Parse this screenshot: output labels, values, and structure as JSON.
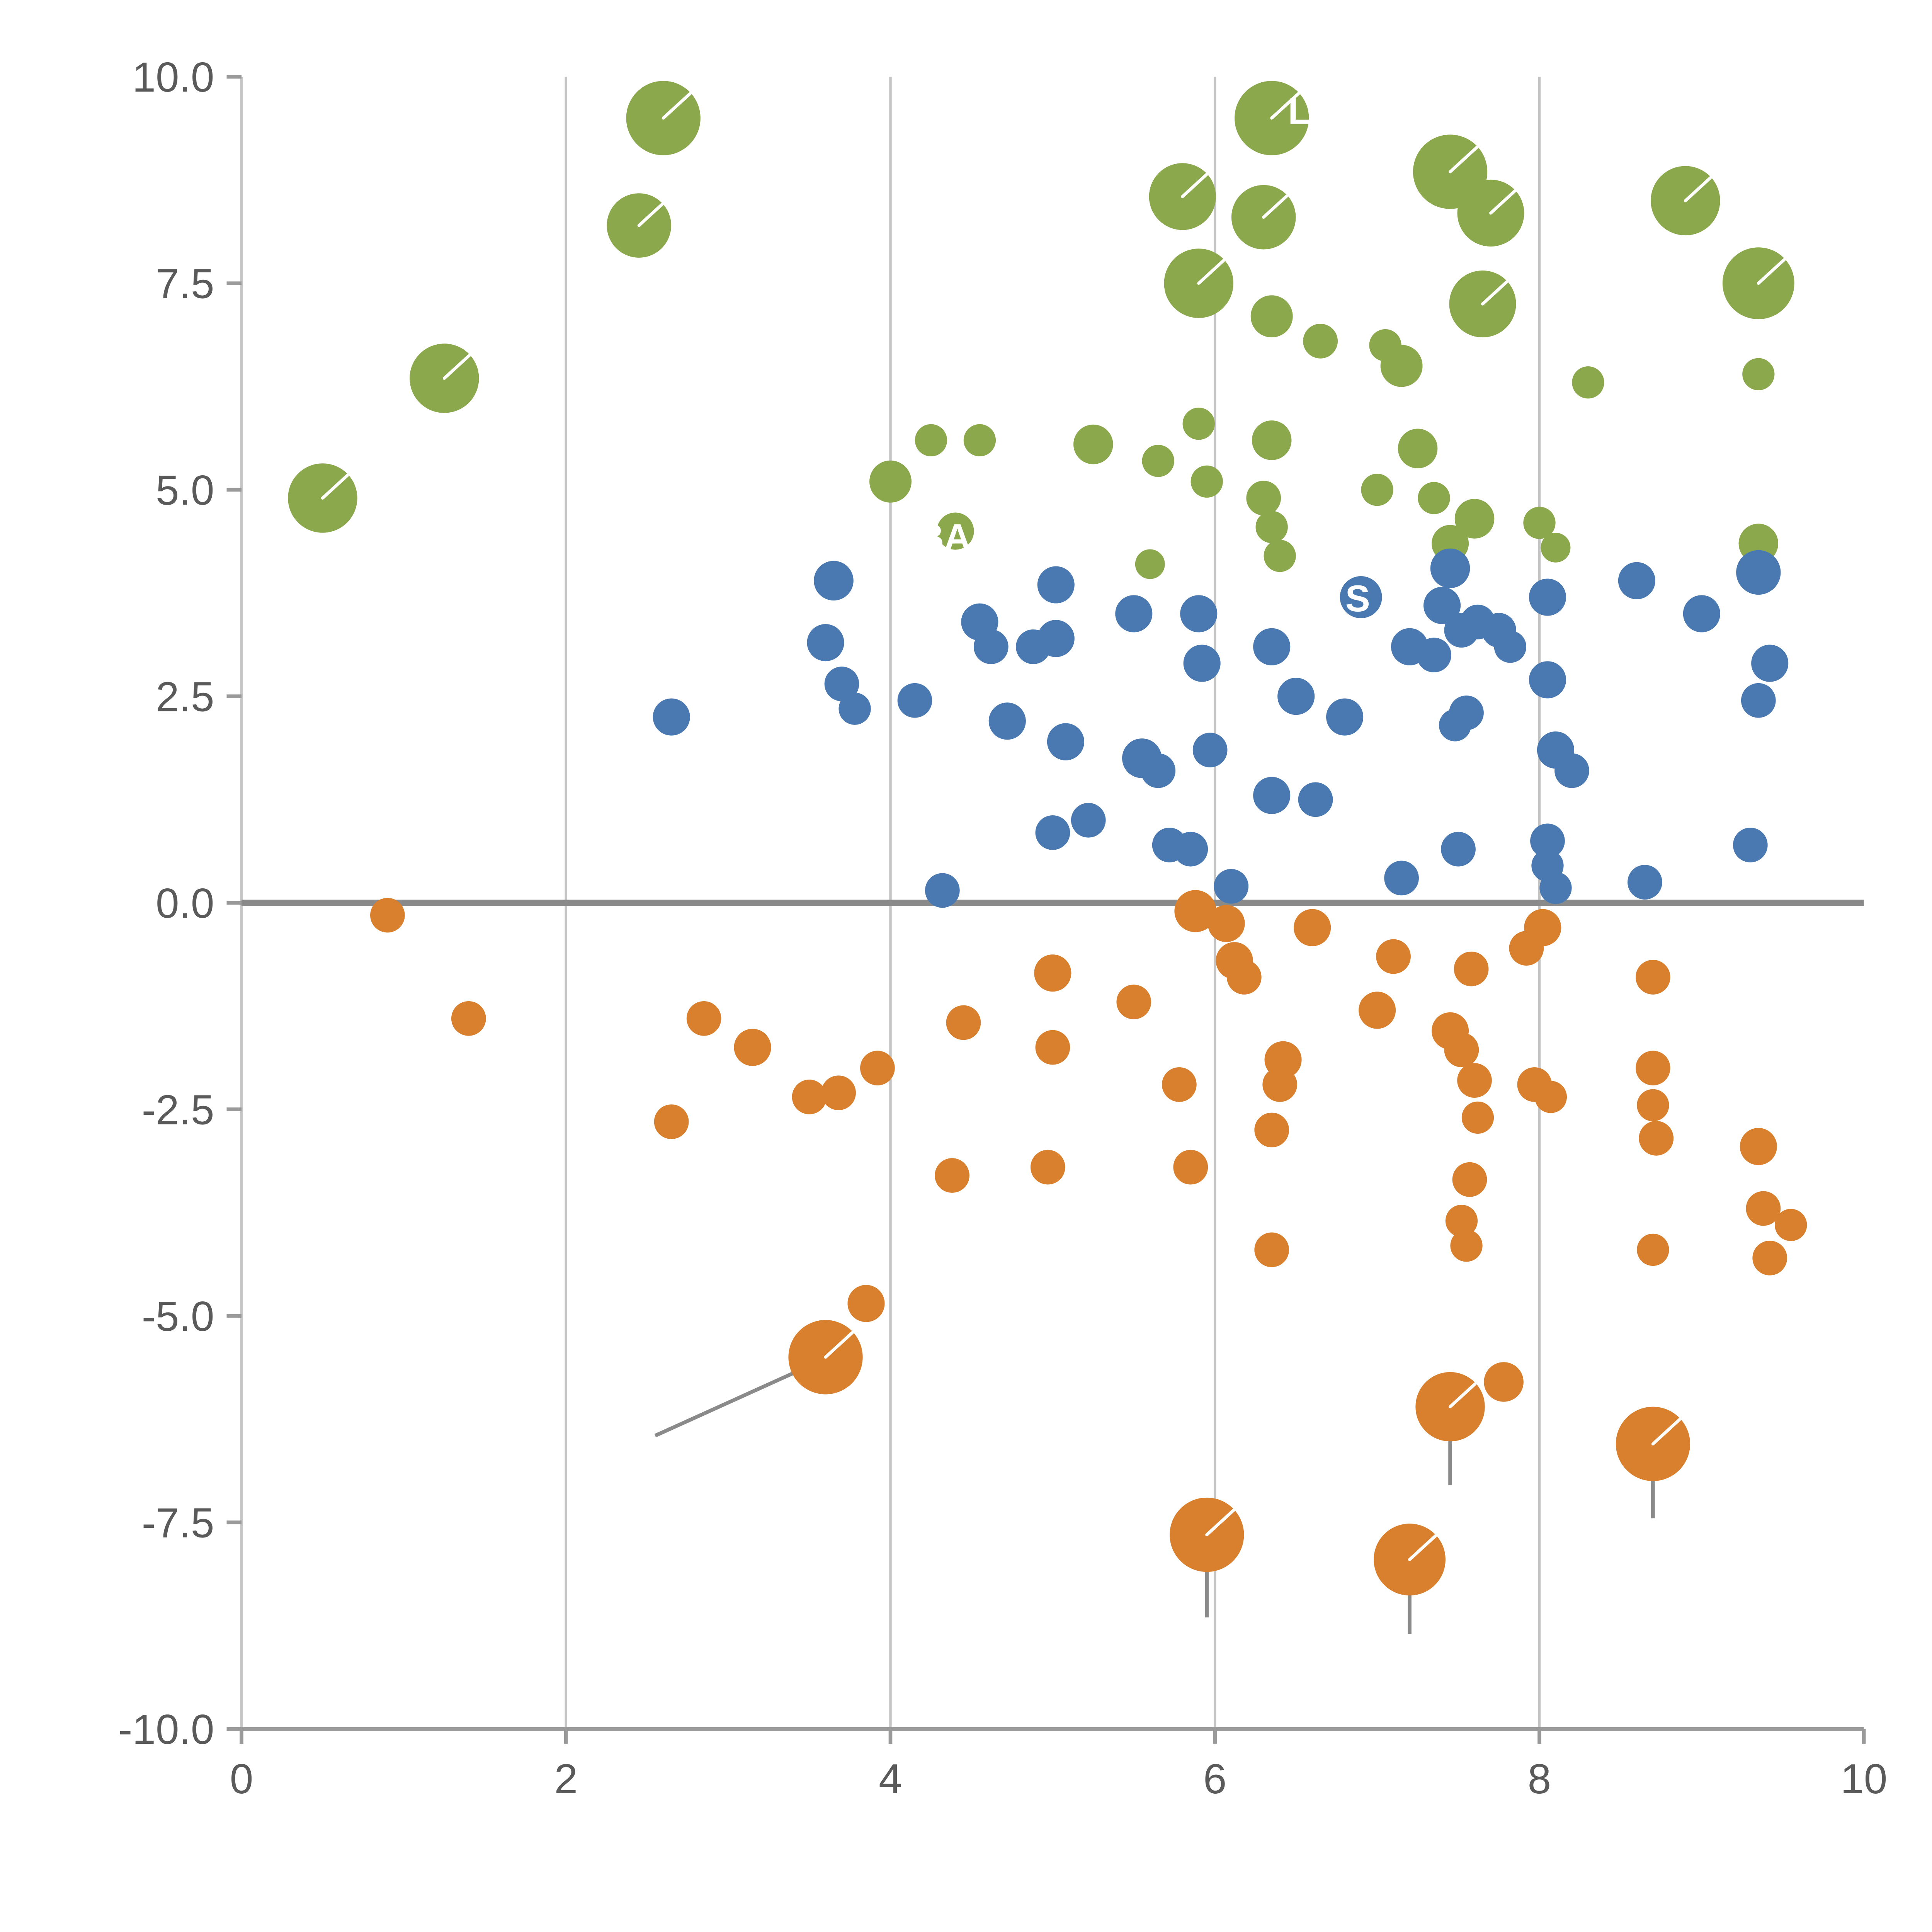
{
  "page": {
    "background": "#ffffff"
  },
  "chart_data": {
    "type": "scatter",
    "title": "",
    "xlabel": "",
    "ylabel": "",
    "xlim": [
      0,
      10
    ],
    "ylim": [
      -10,
      10
    ],
    "x_ticks": [
      0,
      2,
      4,
      6,
      8,
      10
    ],
    "x_tick_labels": [
      "0",
      "2",
      "4",
      "6",
      "8",
      "10"
    ],
    "y_ticks": [
      10,
      7.5,
      5,
      2.5,
      0,
      -2.5,
      -5,
      -7.5,
      -10
    ],
    "y_tick_labels": [
      "10.0",
      "7.5",
      "5.0",
      "2.5",
      "0.0",
      "-2.5",
      "-5.0",
      "-7.5",
      "-10.0"
    ],
    "gridlines_x": [
      2,
      4,
      6,
      8
    ],
    "grid_color": "#c4c4c4",
    "axis_color": "#9a9a9a",
    "zero_line": {
      "y": 0,
      "color": "#8a8a8a",
      "width": 5
    },
    "legend": "none",
    "series": [
      {
        "name": "green",
        "color": "#8CA84D",
        "points": [
          [
            2.6,
            9.5,
            30
          ],
          [
            2.45,
            8.2,
            26
          ],
          [
            1.25,
            6.35,
            28
          ],
          [
            0.5,
            4.9,
            28
          ],
          [
            5.8,
            8.55,
            27
          ],
          [
            6.35,
            9.5,
            30
          ],
          [
            6.3,
            8.3,
            26
          ],
          [
            5.9,
            7.5,
            28
          ],
          [
            6.35,
            7.1,
            17
          ],
          [
            6.65,
            6.8,
            14
          ],
          [
            7.05,
            6.75,
            13
          ],
          [
            7.45,
            8.85,
            30
          ],
          [
            7.7,
            8.35,
            27
          ],
          [
            7.65,
            7.25,
            27
          ],
          [
            7.15,
            6.5,
            17
          ],
          [
            7.25,
            5.5,
            16
          ],
          [
            8.9,
            8.5,
            28
          ],
          [
            9.35,
            7.5,
            29
          ],
          [
            8.3,
            6.3,
            13
          ],
          [
            9.35,
            6.4,
            13
          ],
          [
            4.0,
            5.1,
            17
          ],
          [
            4.25,
            5.6,
            13
          ],
          [
            4.55,
            5.6,
            13
          ],
          [
            4.4,
            4.5,
            15
          ],
          [
            5.25,
            5.55,
            16
          ],
          [
            5.65,
            5.35,
            13
          ],
          [
            5.9,
            5.8,
            13
          ],
          [
            6.35,
            5.6,
            16
          ],
          [
            5.95,
            5.1,
            13
          ],
          [
            6.3,
            4.9,
            14
          ],
          [
            6.35,
            4.55,
            13
          ],
          [
            6.4,
            4.2,
            13
          ],
          [
            7.0,
            5.0,
            13
          ],
          [
            7.35,
            4.9,
            13
          ],
          [
            7.6,
            4.65,
            16
          ],
          [
            7.45,
            4.35,
            15
          ],
          [
            8.0,
            4.6,
            13
          ],
          [
            8.1,
            4.3,
            12
          ],
          [
            9.35,
            4.35,
            16
          ],
          [
            5.6,
            4.1,
            12
          ]
        ]
      },
      {
        "name": "blue",
        "color": "#4A79B2",
        "points": [
          [
            3.65,
            3.9,
            16
          ],
          [
            3.6,
            3.15,
            15
          ],
          [
            3.7,
            2.65,
            14
          ],
          [
            3.78,
            2.35,
            13
          ],
          [
            2.65,
            2.25,
            15
          ],
          [
            4.15,
            2.45,
            14
          ],
          [
            4.55,
            3.4,
            15
          ],
          [
            4.62,
            3.1,
            14
          ],
          [
            4.72,
            2.2,
            15
          ],
          [
            4.88,
            3.1,
            14
          ],
          [
            5.02,
            3.2,
            15
          ],
          [
            5.02,
            3.85,
            15
          ],
          [
            5.08,
            1.95,
            15
          ],
          [
            5.0,
            0.85,
            14
          ],
          [
            5.22,
            1.0,
            14
          ],
          [
            5.5,
            3.5,
            15
          ],
          [
            5.55,
            1.75,
            16
          ],
          [
            5.65,
            1.6,
            14
          ],
          [
            5.72,
            0.7,
            14
          ],
          [
            5.85,
            0.65,
            14
          ],
          [
            5.9,
            3.5,
            15
          ],
          [
            5.92,
            2.9,
            15
          ],
          [
            5.97,
            1.85,
            14
          ],
          [
            6.1,
            0.2,
            14
          ],
          [
            6.35,
            3.1,
            15
          ],
          [
            6.35,
            1.3,
            15
          ],
          [
            6.5,
            2.5,
            15
          ],
          [
            6.62,
            1.25,
            14
          ],
          [
            6.8,
            2.25,
            15
          ],
          [
            6.9,
            3.7,
            17
          ],
          [
            7.2,
            3.1,
            15
          ],
          [
            7.35,
            3.0,
            14
          ],
          [
            7.4,
            3.6,
            15
          ],
          [
            7.45,
            4.05,
            16
          ],
          [
            7.52,
            3.3,
            14
          ],
          [
            7.55,
            2.3,
            14
          ],
          [
            7.48,
            2.15,
            13
          ],
          [
            7.62,
            3.4,
            14
          ],
          [
            7.75,
            3.3,
            14
          ],
          [
            7.82,
            3.1,
            13
          ],
          [
            7.15,
            0.3,
            14
          ],
          [
            7.5,
            0.65,
            14
          ],
          [
            8.05,
            3.7,
            15
          ],
          [
            8.05,
            2.7,
            15
          ],
          [
            8.1,
            1.85,
            15
          ],
          [
            8.2,
            1.6,
            14
          ],
          [
            8.05,
            0.75,
            14
          ],
          [
            8.05,
            0.45,
            13
          ],
          [
            8.1,
            0.18,
            13
          ],
          [
            8.6,
            3.9,
            15
          ],
          [
            9.0,
            3.5,
            15
          ],
          [
            9.35,
            4.0,
            18
          ],
          [
            9.42,
            2.9,
            15
          ],
          [
            9.35,
            2.45,
            14
          ],
          [
            9.3,
            0.7,
            14
          ],
          [
            8.65,
            0.25,
            14
          ],
          [
            4.32,
            0.15,
            14
          ]
        ]
      },
      {
        "name": "orange",
        "color": "#D9802E",
        "points": [
          [
            0.9,
            -0.15,
            14
          ],
          [
            1.4,
            -1.4,
            14
          ],
          [
            2.85,
            -1.4,
            14
          ],
          [
            3.15,
            -1.75,
            15
          ],
          [
            2.65,
            -2.65,
            14
          ],
          [
            3.5,
            -2.35,
            14
          ],
          [
            3.68,
            -2.3,
            14
          ],
          [
            3.92,
            -2.0,
            14
          ],
          [
            4.45,
            -1.45,
            14
          ],
          [
            5.0,
            -0.85,
            15
          ],
          [
            5.0,
            -1.75,
            14
          ],
          [
            5.5,
            -1.2,
            14
          ],
          [
            4.38,
            -3.3,
            14
          ],
          [
            4.97,
            -3.2,
            14
          ],
          [
            5.78,
            -2.2,
            14
          ],
          [
            5.85,
            -3.2,
            14
          ],
          [
            5.88,
            -0.1,
            17
          ],
          [
            6.07,
            -0.25,
            15
          ],
          [
            6.12,
            -0.7,
            15
          ],
          [
            6.18,
            -0.9,
            14
          ],
          [
            6.42,
            -1.9,
            15
          ],
          [
            6.4,
            -2.2,
            14
          ],
          [
            6.35,
            -2.75,
            14
          ],
          [
            6.6,
            -0.3,
            15
          ],
          [
            6.35,
            -4.2,
            14
          ],
          [
            7.0,
            -1.3,
            15
          ],
          [
            7.1,
            -0.65,
            14
          ],
          [
            7.45,
            -1.55,
            15
          ],
          [
            7.52,
            -1.78,
            14
          ],
          [
            7.58,
            -0.8,
            14
          ],
          [
            7.6,
            -2.15,
            14
          ],
          [
            7.62,
            -2.6,
            13
          ],
          [
            7.57,
            -3.35,
            14
          ],
          [
            7.52,
            -3.85,
            13
          ],
          [
            7.55,
            -4.15,
            13
          ],
          [
            7.92,
            -0.55,
            14
          ],
          [
            8.02,
            -0.3,
            15
          ],
          [
            7.97,
            -2.2,
            14
          ],
          [
            8.07,
            -2.35,
            13
          ],
          [
            8.7,
            -0.9,
            14
          ],
          [
            8.7,
            -2.0,
            14
          ],
          [
            8.7,
            -2.45,
            13
          ],
          [
            8.72,
            -2.85,
            14
          ],
          [
            8.7,
            -4.2,
            13
          ],
          [
            9.35,
            -2.95,
            15
          ],
          [
            9.38,
            -3.7,
            14
          ],
          [
            9.42,
            -4.3,
            14
          ],
          [
            9.55,
            -3.9,
            13
          ],
          [
            3.85,
            -4.85,
            15
          ],
          [
            3.6,
            -5.5,
            30
          ],
          [
            7.45,
            -6.1,
            28
          ],
          [
            7.78,
            -5.8,
            16
          ],
          [
            5.95,
            -7.65,
            30
          ],
          [
            7.2,
            -7.95,
            29
          ],
          [
            8.7,
            -6.55,
            30
          ]
        ]
      }
    ],
    "stems": [
      {
        "x1": 3.45,
        "y1": -5.65,
        "x2": 2.55,
        "y2": -6.45
      },
      {
        "x1": 5.95,
        "y1": -7.8,
        "x2": 5.95,
        "y2": -8.65
      },
      {
        "x1": 7.2,
        "y1": -8.1,
        "x2": 7.2,
        "y2": -8.85
      },
      {
        "x1": 7.45,
        "y1": -6.25,
        "x2": 7.45,
        "y2": -7.05
      },
      {
        "x1": 8.7,
        "y1": -6.7,
        "x2": 8.7,
        "y2": -7.45
      }
    ],
    "annotations": [
      {
        "text": "BA",
        "x": 4.33,
        "y": 4.42
      },
      {
        "text": "S",
        "x": 6.88,
        "y": 3.68
      },
      {
        "text": "L",
        "x": 6.52,
        "y": 9.58
      }
    ]
  }
}
